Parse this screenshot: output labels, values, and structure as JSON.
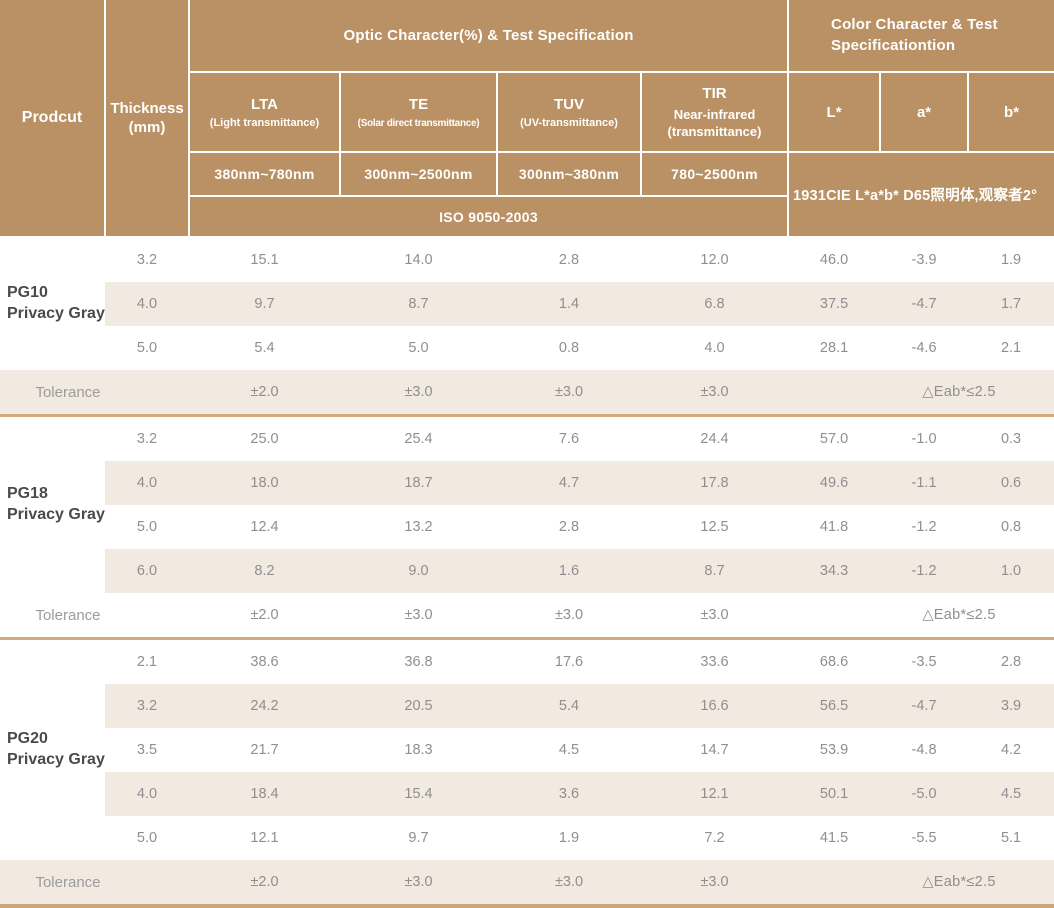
{
  "colors": {
    "header_background": "#ba9164",
    "header_text": "#ffffff",
    "row_stripe": "#f2e9e0",
    "section_divider": "#cfab7e",
    "bottom_border": "#c8a679",
    "value_text": "#8f8f8f",
    "product_text": "#4a4a4a"
  },
  "header": {
    "product_label": "Prodcut",
    "thickness_label": "Thickness\n(mm)",
    "optic_group": "Optic Character(%) & Test Specification",
    "color_group": "Color Character & Test\nSpecificationtion",
    "optic_columns": [
      {
        "name": "LTA",
        "sub": "(Light transmittance)",
        "range": "380nm~780nm"
      },
      {
        "name": "TE",
        "sub": "(Solar direct transmittance)",
        "range": "300nm~2500nm"
      },
      {
        "name": "TUV",
        "sub": "(UV-transmittance)",
        "range": "300nm~380nm"
      },
      {
        "name": "TIR",
        "sub": "Near-infrared\n(transmittance)",
        "range": "780~2500nm"
      }
    ],
    "color_columns": [
      "L*",
      "a*",
      "b*"
    ],
    "iso_label": "ISO 9050-2003",
    "cie_label": "1931CIE L*a*b*  D65照明体,观察者2°"
  },
  "sections": [
    {
      "product": "PG10\nPrivacy Gray",
      "rows": [
        {
          "thickness": "3.2",
          "values": [
            "15.1",
            "14.0",
            "2.8",
            "12.0",
            "46.0",
            "-3.9",
            "1.9"
          ],
          "shaded": false
        },
        {
          "thickness": "4.0",
          "values": [
            "9.7",
            "8.7",
            "1.4",
            "6.8",
            "37.5",
            "-4.7",
            "1.7"
          ],
          "shaded": true
        },
        {
          "thickness": "5.0",
          "values": [
            "5.4",
            "5.0",
            "0.8",
            "4.0",
            "28.1",
            "-4.6",
            "2.1"
          ],
          "shaded": false
        }
      ],
      "tolerance": {
        "label": "Tolerance",
        "values": [
          "±2.0",
          "±3.0",
          "±3.0",
          "±3.0"
        ],
        "color_diff": "△Eab*≤2.5",
        "shaded": true
      }
    },
    {
      "product": "PG18\nPrivacy Gray",
      "rows": [
        {
          "thickness": "3.2",
          "values": [
            "25.0",
            "25.4",
            "7.6",
            "24.4",
            "57.0",
            "-1.0",
            "0.3"
          ],
          "shaded": false
        },
        {
          "thickness": "4.0",
          "values": [
            "18.0",
            "18.7",
            "4.7",
            "17.8",
            "49.6",
            "-1.1",
            "0.6"
          ],
          "shaded": true
        },
        {
          "thickness": "5.0",
          "values": [
            "12.4",
            "13.2",
            "2.8",
            "12.5",
            "41.8",
            "-1.2",
            "0.8"
          ],
          "shaded": false
        },
        {
          "thickness": "6.0",
          "values": [
            "8.2",
            "9.0",
            "1.6",
            "8.7",
            "34.3",
            "-1.2",
            "1.0"
          ],
          "shaded": true
        }
      ],
      "tolerance": {
        "label": "Tolerance",
        "values": [
          "±2.0",
          "±3.0",
          "±3.0",
          "±3.0"
        ],
        "color_diff": "△Eab*≤2.5",
        "shaded": false
      }
    },
    {
      "product": "PG20\nPrivacy Gray",
      "rows": [
        {
          "thickness": "2.1",
          "values": [
            "38.6",
            "36.8",
            "17.6",
            "33.6",
            "68.6",
            "-3.5",
            "2.8"
          ],
          "shaded": false
        },
        {
          "thickness": "3.2",
          "values": [
            "24.2",
            "20.5",
            "5.4",
            "16.6",
            "56.5",
            "-4.7",
            "3.9"
          ],
          "shaded": true
        },
        {
          "thickness": "3.5",
          "values": [
            "21.7",
            "18.3",
            "4.5",
            "14.7",
            "53.9",
            "-4.8",
            "4.2"
          ],
          "shaded": false
        },
        {
          "thickness": "4.0",
          "values": [
            "18.4",
            "15.4",
            "3.6",
            "12.1",
            "50.1",
            "-5.0",
            "4.5"
          ],
          "shaded": true
        },
        {
          "thickness": "5.0",
          "values": [
            "12.1",
            "9.7",
            "1.9",
            "7.2",
            "41.5",
            "-5.5",
            "5.1"
          ],
          "shaded": false
        }
      ],
      "tolerance": {
        "label": "Tolerance",
        "values": [
          "±2.0",
          "±3.0",
          "±3.0",
          "±3.0"
        ],
        "color_diff": "△Eab*≤2.5",
        "shaded": true
      }
    }
  ]
}
